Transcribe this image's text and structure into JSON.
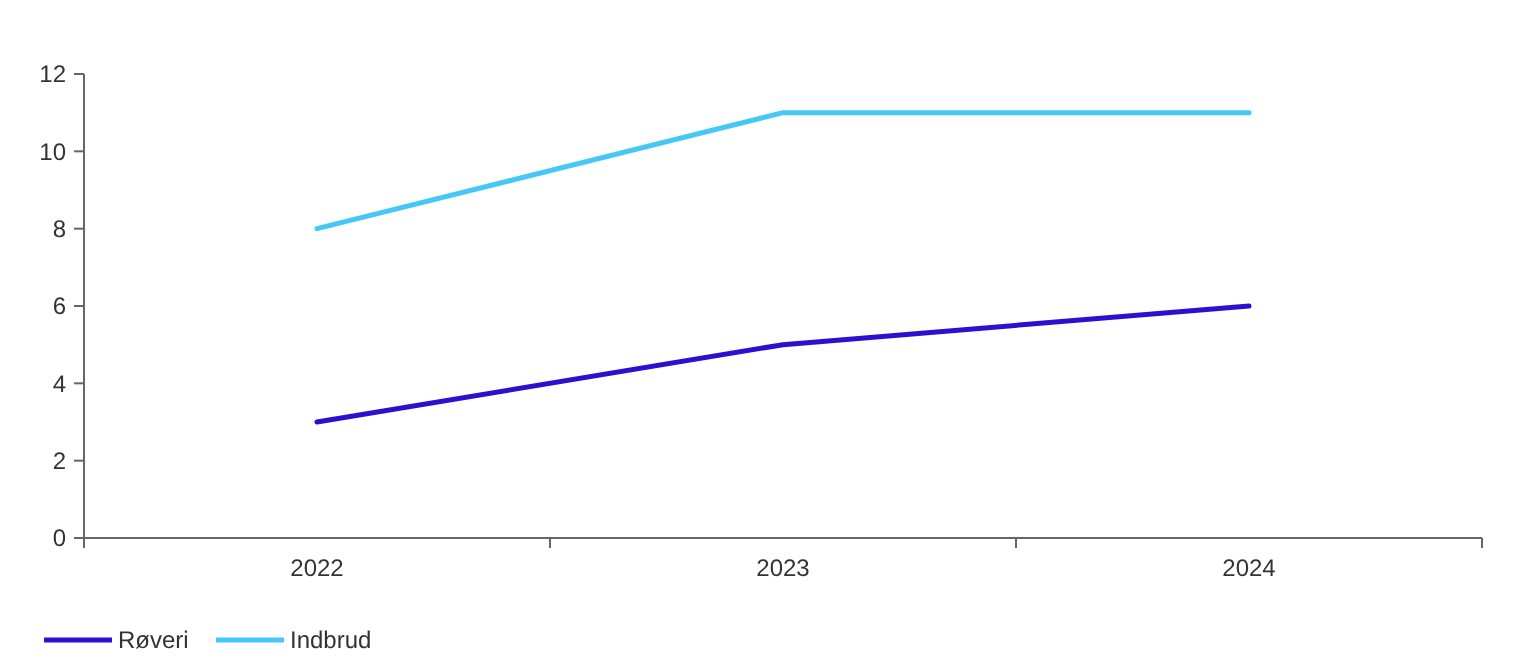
{
  "chart_data": {
    "type": "line",
    "categories": [
      "2022",
      "2023",
      "2024"
    ],
    "series": [
      {
        "name": "Røveri",
        "color": "#2a10d0",
        "values": [
          3,
          5,
          6
        ]
      },
      {
        "name": "Indbrud",
        "color": "#45c8f8",
        "values": [
          8,
          11,
          11
        ]
      }
    ],
    "ylim": [
      0,
      12
    ],
    "yticks": [
      0,
      2,
      4,
      6,
      8,
      10,
      12
    ],
    "grid": false,
    "legend": "bottom",
    "marker": "none",
    "line_style": "solid"
  }
}
